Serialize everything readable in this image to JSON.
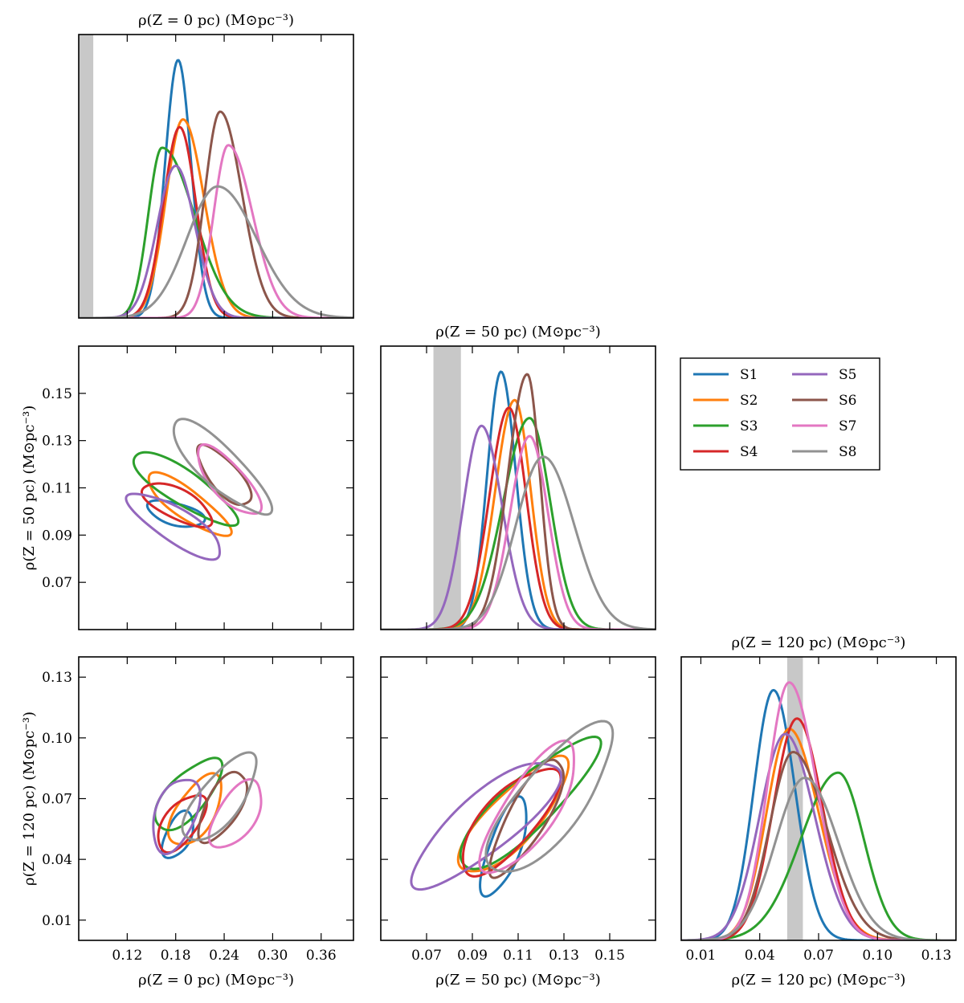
{
  "chart_data": {
    "type": "corner",
    "series_colors": {
      "S1": "#1f77b4",
      "S2": "#ff7f0e",
      "S3": "#2ca02c",
      "S4": "#d62728",
      "S5": "#9467bd",
      "S6": "#8c564b",
      "S7": "#e377c2",
      "S8": "#929292"
    },
    "legend": {
      "entries": [
        "S1",
        "S2",
        "S3",
        "S4",
        "S5",
        "S6",
        "S7",
        "S8"
      ],
      "placement": "right, middle row"
    },
    "band_color": "#c8c8c8",
    "parameters": [
      {
        "title": "ρ(Z = 0 pc)  (M⊙pc⁻³)",
        "axis_label": "ρ(Z = 0 pc)  (M⊙pc⁻³)",
        "range": [
          0.06,
          0.4
        ],
        "ticks": [
          0.12,
          0.18,
          0.24,
          0.3,
          0.36
        ],
        "tick_labels": [
          "0.12",
          "0.18",
          "0.24",
          "0.30",
          "0.36"
        ],
        "band": [
          0.06,
          0.078
        ]
      },
      {
        "title": "ρ(Z = 50 pc)  (M⊙pc⁻³)",
        "axis_label": "ρ(Z = 50 pc)  (M⊙pc⁻³)",
        "range": [
          0.05,
          0.17
        ],
        "ticks": [
          0.07,
          0.09,
          0.11,
          0.13,
          0.15
        ],
        "tick_labels": [
          "0.07",
          "0.09",
          "0.11",
          "0.13",
          "0.15"
        ],
        "band": [
          0.073,
          0.085
        ]
      },
      {
        "title": "ρ(Z = 120 pc)  (M⊙pc⁻³)",
        "axis_label": "ρ(Z = 120 pc)  (M⊙pc⁻³)",
        "range": [
          0.0,
          0.14
        ],
        "ticks": [
          0.01,
          0.04,
          0.07,
          0.1,
          0.13
        ],
        "tick_labels": [
          "0.01",
          "0.04",
          "0.07",
          "0.10",
          "0.13"
        ],
        "band": [
          0.054,
          0.062
        ]
      }
    ],
    "marginals": [
      {
        "parameter": 0,
        "series": [
          {
            "name": "S1",
            "peak": 0.183,
            "sigma_left": 0.016,
            "sigma_right": 0.016,
            "height": 1.0
          },
          {
            "name": "S2",
            "peak": 0.189,
            "sigma_left": 0.021,
            "sigma_right": 0.026,
            "height": 0.77
          },
          {
            "name": "S3",
            "peak": 0.163,
            "sigma_left": 0.017,
            "sigma_right": 0.04,
            "height": 0.66
          },
          {
            "name": "S4",
            "peak": 0.185,
            "sigma_left": 0.02,
            "sigma_right": 0.02,
            "height": 0.74
          },
          {
            "name": "S5",
            "peak": 0.18,
            "sigma_left": 0.023,
            "sigma_right": 0.024,
            "height": 0.59
          },
          {
            "name": "S6",
            "peak": 0.235,
            "sigma_left": 0.019,
            "sigma_right": 0.027,
            "height": 0.8
          },
          {
            "name": "S7",
            "peak": 0.245,
            "sigma_left": 0.018,
            "sigma_right": 0.03,
            "height": 0.67
          },
          {
            "name": "S8",
            "peak": 0.232,
            "sigma_left": 0.038,
            "sigma_right": 0.048,
            "height": 0.51
          }
        ]
      },
      {
        "parameter": 1,
        "series": [
          {
            "name": "S1",
            "peak": 0.1025,
            "sigma_left": 0.006,
            "sigma_right": 0.0065,
            "height": 1.0
          },
          {
            "name": "S2",
            "peak": 0.1085,
            "sigma_left": 0.0085,
            "sigma_right": 0.007,
            "height": 0.89
          },
          {
            "name": "S3",
            "peak": 0.115,
            "sigma_left": 0.0115,
            "sigma_right": 0.009,
            "height": 0.82
          },
          {
            "name": "S4",
            "peak": 0.106,
            "sigma_left": 0.0085,
            "sigma_right": 0.0075,
            "height": 0.86
          },
          {
            "name": "S5",
            "peak": 0.094,
            "sigma_left": 0.008,
            "sigma_right": 0.009,
            "height": 0.79
          },
          {
            "name": "S6",
            "peak": 0.114,
            "sigma_left": 0.0085,
            "sigma_right": 0.0055,
            "height": 0.99
          },
          {
            "name": "S7",
            "peak": 0.115,
            "sigma_left": 0.0085,
            "sigma_right": 0.008,
            "height": 0.75
          },
          {
            "name": "S8",
            "peak": 0.121,
            "sigma_left": 0.012,
            "sigma_right": 0.0135,
            "height": 0.67
          }
        ]
      },
      {
        "parameter": 2,
        "series": [
          {
            "name": "S1",
            "peak": 0.047,
            "sigma_left": 0.01,
            "sigma_right": 0.011,
            "height": 0.97
          },
          {
            "name": "S2",
            "peak": 0.055,
            "sigma_left": 0.0115,
            "sigma_right": 0.015,
            "height": 0.82
          },
          {
            "name": "S3",
            "peak": 0.08,
            "sigma_left": 0.019,
            "sigma_right": 0.013,
            "height": 0.65
          },
          {
            "name": "S4",
            "peak": 0.059,
            "sigma_left": 0.012,
            "sigma_right": 0.013,
            "height": 0.86
          },
          {
            "name": "S5",
            "peak": 0.053,
            "sigma_left": 0.013,
            "sigma_right": 0.015,
            "height": 0.8
          },
          {
            "name": "S6",
            "peak": 0.057,
            "sigma_left": 0.012,
            "sigma_right": 0.017,
            "height": 0.73
          },
          {
            "name": "S7",
            "peak": 0.055,
            "sigma_left": 0.011,
            "sigma_right": 0.014,
            "height": 1.0
          },
          {
            "name": "S8",
            "peak": 0.063,
            "sigma_left": 0.015,
            "sigma_right": 0.017,
            "height": 0.63
          }
        ]
      }
    ],
    "contours": [
      {
        "x_parameter": 0,
        "y_parameter": 1,
        "series": [
          {
            "name": "S1",
            "center": [
              0.18,
              0.099
            ],
            "axes": [
              0.035,
              0.014
            ],
            "angle_deg": -15
          },
          {
            "name": "S2",
            "center": [
              0.195,
              0.103
            ],
            "axes": [
              0.06,
              0.018
            ],
            "angle_deg": -35
          },
          {
            "name": "S3",
            "center": [
              0.19,
              0.11
            ],
            "axes": [
              0.075,
              0.021
            ],
            "angle_deg": -32
          },
          {
            "name": "S4",
            "center": [
              0.182,
              0.103
            ],
            "axes": [
              0.048,
              0.018
            ],
            "angle_deg": -25
          },
          {
            "name": "S5",
            "center": [
              0.18,
              0.094
            ],
            "axes": [
              0.07,
              0.02
            ],
            "angle_deg": -32
          },
          {
            "name": "S6",
            "center": [
              0.24,
              0.115
            ],
            "axes": [
              0.048,
              0.017
            ],
            "angle_deg": -50
          },
          {
            "name": "S7",
            "center": [
              0.245,
              0.113
            ],
            "axes": [
              0.055,
              0.02
            ],
            "angle_deg": -50
          },
          {
            "name": "S8",
            "center": [
              0.235,
              0.119
            ],
            "axes": [
              0.08,
              0.024
            ],
            "angle_deg": -45
          }
        ]
      },
      {
        "x_parameter": 0,
        "y_parameter": 2,
        "series": [
          {
            "name": "S1",
            "center": [
              0.183,
              0.052
            ],
            "axes": [
              0.03,
              0.016
            ],
            "angle_deg": 65
          },
          {
            "name": "S2",
            "center": [
              0.205,
              0.064
            ],
            "axes": [
              0.048,
              0.024
            ],
            "angle_deg": 60
          },
          {
            "name": "S3",
            "center": [
              0.195,
              0.072
            ],
            "axes": [
              0.055,
              0.024
            ],
            "angle_deg": 50
          },
          {
            "name": "S4",
            "center": [
              0.187,
              0.058
            ],
            "axes": [
              0.042,
              0.02
            ],
            "angle_deg": 55
          },
          {
            "name": "S5",
            "center": [
              0.18,
              0.062
            ],
            "axes": [
              0.05,
              0.024
            ],
            "angle_deg": 70
          },
          {
            "name": "S6",
            "center": [
              0.238,
              0.066
            ],
            "axes": [
              0.05,
              0.02
            ],
            "angle_deg": 60
          },
          {
            "name": "S7",
            "center": [
              0.255,
              0.062
            ],
            "axes": [
              0.048,
              0.023
            ],
            "angle_deg": 55
          },
          {
            "name": "S8",
            "center": [
              0.235,
              0.07
            ],
            "axes": [
              0.065,
              0.026
            ],
            "angle_deg": 50
          }
        ]
      },
      {
        "x_parameter": 1,
        "y_parameter": 2,
        "series": [
          {
            "name": "S1",
            "center": [
              0.104,
              0.046
            ],
            "axes": [
              0.022,
              0.007
            ],
            "angle_deg": 70
          },
          {
            "name": "S2",
            "center": [
              0.108,
              0.061
            ],
            "axes": [
              0.032,
              0.011
            ],
            "angle_deg": 48
          },
          {
            "name": "S3",
            "center": [
              0.114,
              0.067
            ],
            "axes": [
              0.04,
              0.011
            ],
            "angle_deg": 44
          },
          {
            "name": "S4",
            "center": [
              0.106,
              0.059
            ],
            "axes": [
              0.03,
              0.011
            ],
            "angle_deg": 50
          },
          {
            "name": "S5",
            "center": [
              0.096,
              0.058
            ],
            "axes": [
              0.042,
              0.012
            ],
            "angle_deg": 40
          },
          {
            "name": "S6",
            "center": [
              0.114,
              0.061
            ],
            "axes": [
              0.03,
              0.008
            ],
            "angle_deg": 60
          },
          {
            "name": "S7",
            "center": [
              0.115,
              0.065
            ],
            "axes": [
              0.034,
              0.011
            ],
            "angle_deg": 55
          },
          {
            "name": "S8",
            "center": [
              0.124,
              0.069
            ],
            "axes": [
              0.04,
              0.014
            ],
            "angle_deg": 50
          }
        ]
      }
    ]
  }
}
